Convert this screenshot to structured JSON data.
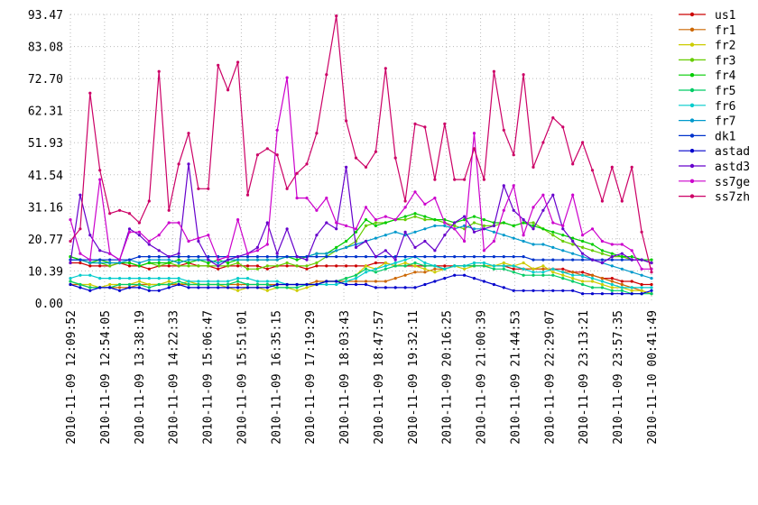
{
  "chart_data": {
    "type": "line",
    "title": "",
    "xlabel": "",
    "ylabel": "",
    "ylim": [
      0,
      93.47
    ],
    "yticks": [
      0.0,
      10.39,
      20.77,
      31.16,
      41.54,
      51.93,
      62.31,
      72.7,
      83.08,
      93.47
    ],
    "ytick_labels": [
      "0.00",
      "10.39",
      "20.77",
      "31.16",
      "41.54",
      "51.93",
      "62.31",
      "72.70",
      "83.08",
      "93.47"
    ],
    "xtick_labels": [
      "2010-11-09 12:09:52",
      "2010-11-09 12:54:05",
      "2010-11-09 13:38:19",
      "2010-11-09 14:22:33",
      "2010-11-09 15:06:47",
      "2010-11-09 15:51:01",
      "2010-11-09 16:35:15",
      "2010-11-09 17:19:29",
      "2010-11-09 18:03:43",
      "2010-11-09 18:47:57",
      "2010-11-09 19:32:11",
      "2010-11-09 20:16:25",
      "2010-11-09 21:00:39",
      "2010-11-09 21:44:53",
      "2010-11-09 22:29:07",
      "2010-11-09 23:13:21",
      "2010-11-09 23:57:35",
      "2010-11-10 00:41:49"
    ],
    "grid": true,
    "legend_position": "right",
    "n_points": 60,
    "series": [
      {
        "name": "us1",
        "color": "#cc0000",
        "values": [
          13,
          13,
          12,
          12,
          12,
          13,
          12,
          12,
          11,
          12,
          12,
          12,
          13,
          12,
          12,
          11,
          12,
          12,
          12,
          12,
          11,
          12,
          12,
          12,
          11,
          12,
          12,
          12,
          12,
          12,
          12,
          13,
          13,
          12,
          12,
          12,
          12,
          12,
          12,
          12,
          12,
          12,
          12,
          12,
          12,
          11,
          11,
          11,
          11,
          11,
          11,
          10,
          10,
          9,
          8,
          8,
          7,
          7,
          6,
          6
        ]
      },
      {
        "name": "fr1",
        "color": "#cc6600",
        "values": [
          6,
          6,
          5,
          5,
          5,
          5,
          5,
          6,
          6,
          6,
          6,
          6,
          6,
          6,
          6,
          6,
          6,
          6,
          6,
          6,
          6,
          6,
          6,
          6,
          6,
          7,
          7,
          7,
          7,
          7,
          7,
          7,
          7,
          8,
          9,
          10,
          10,
          11,
          11,
          12,
          12,
          12,
          12,
          12,
          12,
          12,
          11,
          11,
          11,
          11,
          10,
          10,
          9,
          9,
          8,
          7,
          6,
          5,
          4,
          3
        ]
      },
      {
        "name": "fr2",
        "color": "#cccc00",
        "values": [
          7,
          6,
          6,
          5,
          6,
          6,
          6,
          7,
          6,
          6,
          7,
          6,
          7,
          6,
          6,
          6,
          5,
          4,
          5,
          5,
          4,
          5,
          5,
          4,
          5,
          6,
          7,
          7,
          8,
          9,
          12,
          11,
          13,
          12,
          13,
          12,
          11,
          10,
          11,
          12,
          11,
          12,
          12,
          12,
          13,
          12,
          13,
          11,
          12,
          10,
          9,
          8,
          7,
          7,
          6,
          5,
          5,
          4,
          4,
          3
        ]
      },
      {
        "name": "fr3",
        "color": "#66cc00",
        "values": [
          15,
          14,
          13,
          13,
          12,
          13,
          13,
          12,
          13,
          12,
          13,
          12,
          12,
          12,
          12,
          12,
          12,
          13,
          11,
          11,
          12,
          12,
          13,
          12,
          12,
          13,
          15,
          17,
          18,
          20,
          25,
          26,
          26,
          27,
          27,
          28,
          27,
          27,
          26,
          25,
          24,
          26,
          25,
          25,
          26,
          25,
          26,
          26,
          24,
          22,
          20,
          19,
          18,
          17,
          16,
          15,
          15,
          14,
          14,
          13
        ]
      },
      {
        "name": "fr4",
        "color": "#00cc00",
        "values": [
          15,
          14,
          13,
          14,
          13,
          13,
          13,
          12,
          13,
          13,
          13,
          14,
          13,
          14,
          13,
          14,
          13,
          14,
          14,
          14,
          14,
          14,
          15,
          14,
          15,
          16,
          16,
          18,
          20,
          23,
          27,
          25,
          26,
          27,
          28,
          29,
          28,
          27,
          27,
          26,
          27,
          28,
          27,
          26,
          26,
          25,
          26,
          25,
          24,
          23,
          22,
          21,
          20,
          19,
          17,
          16,
          15,
          15,
          14,
          14
        ]
      },
      {
        "name": "fr5",
        "color": "#00cc66",
        "values": [
          7,
          6,
          5,
          5,
          5,
          6,
          6,
          6,
          5,
          6,
          6,
          7,
          6,
          6,
          6,
          6,
          6,
          7,
          6,
          6,
          6,
          5,
          5,
          5,
          6,
          6,
          7,
          7,
          8,
          9,
          11,
          10,
          11,
          12,
          12,
          13,
          12,
          12,
          11,
          12,
          12,
          12,
          12,
          11,
          11,
          10,
          9,
          9,
          9,
          9,
          8,
          7,
          6,
          5,
          5,
          4,
          4,
          3,
          3,
          3
        ]
      },
      {
        "name": "fr6",
        "color": "#00cccc",
        "values": [
          8,
          9,
          9,
          8,
          8,
          8,
          8,
          8,
          8,
          8,
          8,
          8,
          7,
          7,
          7,
          7,
          7,
          8,
          8,
          7,
          7,
          7,
          6,
          6,
          6,
          6,
          6,
          6,
          7,
          8,
          10,
          11,
          12,
          13,
          14,
          15,
          13,
          12,
          11,
          12,
          12,
          13,
          13,
          12,
          12,
          12,
          11,
          10,
          10,
          11,
          10,
          9,
          9,
          8,
          7,
          6,
          5,
          5,
          5,
          5
        ]
      },
      {
        "name": "fr7",
        "color": "#0099cc",
        "values": [
          14,
          14,
          13,
          13,
          13,
          13,
          14,
          13,
          14,
          14,
          14,
          13,
          14,
          14,
          14,
          13,
          14,
          14,
          14,
          14,
          14,
          14,
          15,
          15,
          15,
          16,
          16,
          17,
          18,
          19,
          20,
          21,
          22,
          23,
          22,
          23,
          24,
          25,
          25,
          24,
          25,
          24,
          24,
          23,
          22,
          21,
          20,
          19,
          19,
          18,
          17,
          16,
          15,
          14,
          13,
          12,
          11,
          10,
          9,
          8
        ]
      },
      {
        "name": "dk1",
        "color": "#0033cc",
        "values": [
          14,
          14,
          14,
          14,
          14,
          14,
          14,
          15,
          15,
          15,
          15,
          15,
          15,
          15,
          15,
          15,
          15,
          15,
          15,
          15,
          15,
          15,
          15,
          15,
          15,
          15,
          15,
          15,
          15,
          15,
          15,
          15,
          15,
          15,
          15,
          15,
          15,
          15,
          15,
          15,
          15,
          15,
          15,
          15,
          15,
          15,
          15,
          14,
          14,
          14,
          14,
          14,
          14,
          14,
          14,
          14,
          14,
          14,
          14,
          13
        ]
      },
      {
        "name": "astad",
        "color": "#0000cc",
        "values": [
          6,
          5,
          4,
          5,
          5,
          4,
          5,
          5,
          4,
          4,
          5,
          6,
          5,
          5,
          5,
          5,
          5,
          5,
          5,
          5,
          5,
          6,
          6,
          6,
          6,
          6,
          7,
          7,
          6,
          6,
          6,
          5,
          5,
          5,
          5,
          5,
          6,
          7,
          8,
          9,
          9,
          8,
          7,
          6,
          5,
          4,
          4,
          4,
          4,
          4,
          4,
          4,
          3,
          3,
          3,
          3,
          3,
          3,
          3,
          4
        ]
      },
      {
        "name": "astd3",
        "color": "#6600cc",
        "values": [
          13,
          35,
          22,
          17,
          16,
          14,
          24,
          22,
          19,
          17,
          15,
          16,
          45,
          20,
          14,
          12,
          14,
          15,
          16,
          18,
          26,
          16,
          24,
          15,
          14,
          22,
          26,
          24,
          44,
          18,
          20,
          15,
          17,
          14,
          23,
          18,
          20,
          17,
          22,
          26,
          28,
          23,
          24,
          25,
          38,
          30,
          27,
          24,
          30,
          35,
          24,
          20,
          16,
          14,
          13,
          15,
          16,
          14,
          14,
          13
        ]
      },
      {
        "name": "ss7ge",
        "color": "#cc00cc",
        "values": [
          27,
          16,
          14,
          40,
          16,
          14,
          23,
          23,
          20,
          22,
          26,
          26,
          20,
          21,
          22,
          14,
          15,
          27,
          16,
          17,
          19,
          56,
          73,
          34,
          34,
          30,
          34,
          26,
          25,
          24,
          31,
          27,
          28,
          27,
          31,
          36,
          32,
          34,
          26,
          24,
          20,
          55,
          17,
          20,
          30,
          38,
          22,
          31,
          35,
          26,
          25,
          35,
          22,
          24,
          20,
          19,
          19,
          17,
          11,
          11
        ]
      },
      {
        "name": "ss7zh",
        "color": "#cc0066",
        "values": [
          20,
          24,
          68,
          43,
          29,
          30,
          29,
          26,
          33,
          75,
          30,
          45,
          55,
          37,
          37,
          77,
          69,
          78,
          35,
          48,
          50,
          48,
          37,
          42,
          45,
          55,
          74,
          93,
          59,
          47,
          44,
          49,
          76,
          47,
          33,
          58,
          57,
          40,
          58,
          40,
          40,
          50,
          40,
          75,
          56,
          48,
          74,
          44,
          52,
          60,
          57,
          45,
          52,
          43,
          33,
          44,
          33,
          44,
          23,
          10
        ]
      }
    ]
  }
}
